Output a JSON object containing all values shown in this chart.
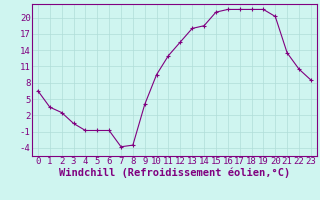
{
  "x": [
    0,
    1,
    2,
    3,
    4,
    5,
    6,
    7,
    8,
    9,
    10,
    11,
    12,
    13,
    14,
    15,
    16,
    17,
    18,
    19,
    20,
    21,
    22,
    23
  ],
  "y": [
    6.5,
    3.5,
    2.5,
    0.5,
    -0.8,
    -0.8,
    -0.8,
    -3.8,
    -3.5,
    4.0,
    9.5,
    13.0,
    15.5,
    18.0,
    18.5,
    21.0,
    21.5,
    21.5,
    21.5,
    21.5,
    20.2,
    13.5,
    10.5,
    8.5
  ],
  "line_color": "#800080",
  "marker": "+",
  "marker_size": 3,
  "bg_color": "#cff5f0",
  "grid_color": "#b0ddd8",
  "xlabel": "Windchill (Refroidissement éolien,°C)",
  "ylabel_ticks": [
    20,
    17,
    14,
    11,
    8,
    5,
    2,
    -1,
    -4
  ],
  "xtick_labels": [
    "0",
    "1",
    "2",
    "3",
    "4",
    "5",
    "6",
    "7",
    "8",
    "9",
    "10",
    "11",
    "12",
    "13",
    "14",
    "15",
    "16",
    "17",
    "18",
    "19",
    "20",
    "21",
    "22",
    "23"
  ],
  "ylim": [
    -5.5,
    22.5
  ],
  "xlim": [
    -0.5,
    23.5
  ],
  "spine_color": "#800080",
  "tick_color": "#800080",
  "label_color": "#800080",
  "font_size": 6.5,
  "xlabel_fontsize": 7.5
}
